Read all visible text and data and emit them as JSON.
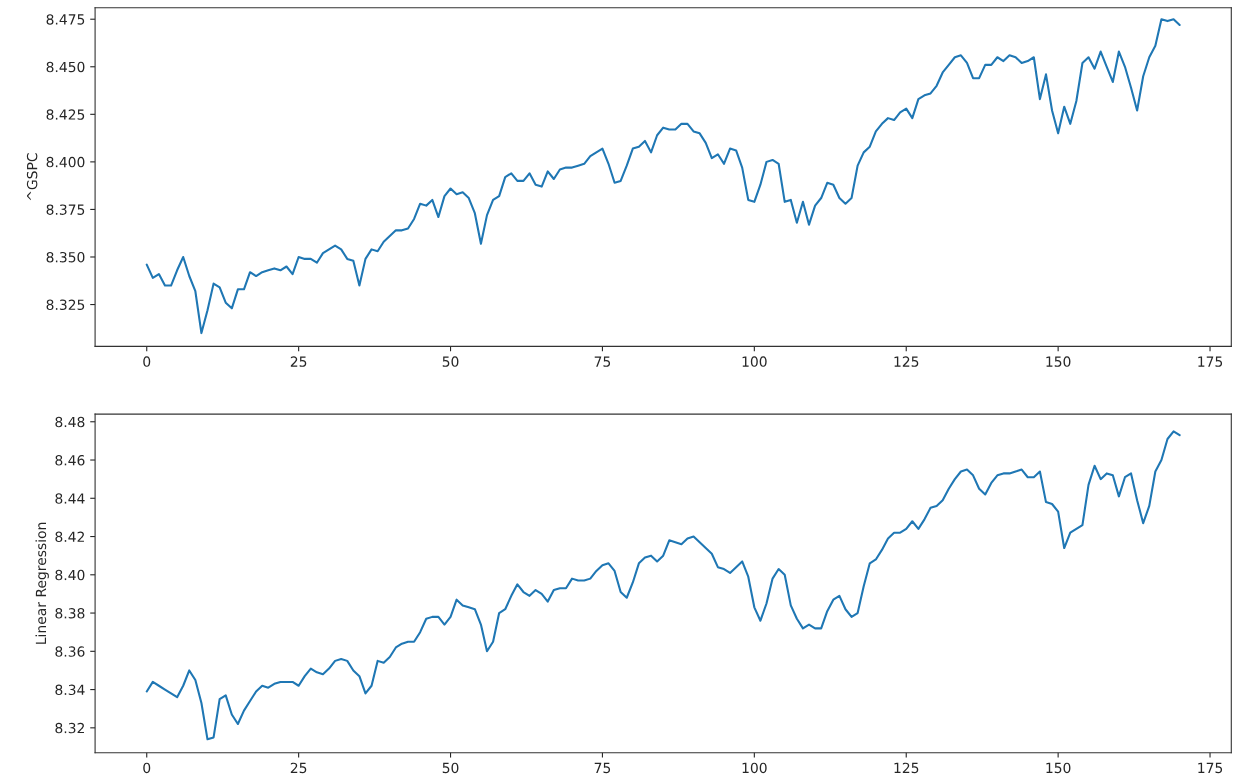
{
  "chart_data": [
    {
      "type": "line",
      "ylabel": "^GSPC",
      "xlim": [
        -8.5,
        178.5
      ],
      "ylim": [
        8.303,
        8.481
      ],
      "xticks": [
        0,
        25,
        50,
        75,
        100,
        125,
        150,
        175
      ],
      "yticks": [
        {
          "value": 8.325,
          "label": "8.325"
        },
        {
          "value": 8.35,
          "label": "8.350"
        },
        {
          "value": 8.375,
          "label": "8.375"
        },
        {
          "value": 8.4,
          "label": "8.400"
        },
        {
          "value": 8.425,
          "label": "8.425"
        },
        {
          "value": 8.45,
          "label": "8.450"
        },
        {
          "value": 8.475,
          "label": "8.475"
        }
      ],
      "grid": false,
      "legend": false,
      "series": [
        {
          "color": "#1f77b4",
          "x": [
            0,
            1,
            2,
            3,
            4,
            5,
            6,
            7,
            8,
            9,
            10,
            11,
            12,
            13,
            14,
            15,
            16,
            17,
            18,
            19,
            20,
            21,
            22,
            23,
            24,
            25,
            26,
            27,
            28,
            29,
            30,
            31,
            32,
            33,
            34,
            35,
            36,
            37,
            38,
            39,
            40,
            41,
            42,
            43,
            44,
            45,
            46,
            47,
            48,
            49,
            50,
            51,
            52,
            53,
            54,
            55,
            56,
            57,
            58,
            59,
            60,
            61,
            62,
            63,
            64,
            65,
            66,
            67,
            68,
            69,
            70,
            71,
            72,
            73,
            74,
            75,
            76,
            77,
            78,
            79,
            80,
            81,
            82,
            83,
            84,
            85,
            86,
            87,
            88,
            89,
            90,
            91,
            92,
            93,
            94,
            95,
            96,
            97,
            98,
            99,
            100,
            101,
            102,
            103,
            104,
            105,
            106,
            107,
            108,
            109,
            110,
            111,
            112,
            113,
            114,
            115,
            116,
            117,
            118,
            119,
            120,
            121,
            122,
            123,
            124,
            125,
            126,
            127,
            128,
            129,
            130,
            131,
            132,
            133,
            134,
            135,
            136,
            137,
            138,
            139,
            140,
            141,
            142,
            143,
            144,
            145,
            146,
            147,
            148,
            149,
            150,
            151,
            152,
            153,
            154,
            155,
            156,
            157,
            158,
            159,
            160,
            161,
            162,
            163,
            164,
            165,
            166,
            167,
            168,
            169,
            170
          ],
          "values": [
            8.346,
            8.339,
            8.341,
            8.335,
            8.335,
            8.343,
            8.35,
            8.34,
            8.332,
            8.31,
            8.322,
            8.336,
            8.334,
            8.326,
            8.323,
            8.333,
            8.333,
            8.342,
            8.34,
            8.342,
            8.343,
            8.344,
            8.343,
            8.345,
            8.341,
            8.35,
            8.349,
            8.349,
            8.347,
            8.352,
            8.354,
            8.356,
            8.354,
            8.349,
            8.348,
            8.335,
            8.349,
            8.354,
            8.353,
            8.358,
            8.361,
            8.364,
            8.364,
            8.365,
            8.37,
            8.378,
            8.377,
            8.38,
            8.371,
            8.382,
            8.386,
            8.383,
            8.384,
            8.381,
            8.373,
            8.357,
            8.372,
            8.38,
            8.382,
            8.392,
            8.394,
            8.39,
            8.39,
            8.394,
            8.388,
            8.387,
            8.395,
            8.391,
            8.396,
            8.397,
            8.397,
            8.398,
            8.399,
            8.403,
            8.405,
            8.407,
            8.399,
            8.389,
            8.39,
            8.398,
            8.407,
            8.408,
            8.411,
            8.405,
            8.414,
            8.418,
            8.417,
            8.417,
            8.42,
            8.42,
            8.416,
            8.415,
            8.41,
            8.402,
            8.404,
            8.399,
            8.407,
            8.406,
            8.397,
            8.38,
            8.379,
            8.388,
            8.4,
            8.401,
            8.399,
            8.379,
            8.38,
            8.368,
            8.379,
            8.367,
            8.377,
            8.381,
            8.389,
            8.388,
            8.381,
            8.378,
            8.381,
            8.398,
            8.405,
            8.408,
            8.416,
            8.42,
            8.423,
            8.422,
            8.426,
            8.428,
            8.423,
            8.433,
            8.435,
            8.436,
            8.44,
            8.447,
            8.451,
            8.455,
            8.456,
            8.452,
            8.444,
            8.444,
            8.451,
            8.451,
            8.455,
            8.453,
            8.456,
            8.455,
            8.452,
            8.453,
            8.455,
            8.433,
            8.446,
            8.427,
            8.415,
            8.429,
            8.42,
            8.432,
            8.452,
            8.455,
            8.449,
            8.458,
            8.45,
            8.442,
            8.458,
            8.45,
            8.439,
            8.427,
            8.445,
            8.455,
            8.461,
            8.475,
            8.474,
            8.475,
            8.472
          ]
        }
      ]
    },
    {
      "type": "line",
      "ylabel": "Linear Regression",
      "xlim": [
        -8.5,
        178.5
      ],
      "ylim": [
        8.307,
        8.484
      ],
      "xticks": [
        0,
        25,
        50,
        75,
        100,
        125,
        150,
        175
      ],
      "yticks": [
        {
          "value": 8.32,
          "label": "8.32"
        },
        {
          "value": 8.34,
          "label": "8.34"
        },
        {
          "value": 8.36,
          "label": "8.36"
        },
        {
          "value": 8.38,
          "label": "8.38"
        },
        {
          "value": 8.4,
          "label": "8.40"
        },
        {
          "value": 8.42,
          "label": "8.42"
        },
        {
          "value": 8.44,
          "label": "8.44"
        },
        {
          "value": 8.46,
          "label": "8.46"
        },
        {
          "value": 8.48,
          "label": "8.48"
        }
      ],
      "grid": false,
      "legend": false,
      "series": [
        {
          "color": "#1f77b4",
          "x": [
            0,
            1,
            2,
            3,
            4,
            5,
            6,
            7,
            8,
            9,
            10,
            11,
            12,
            13,
            14,
            15,
            16,
            17,
            18,
            19,
            20,
            21,
            22,
            23,
            24,
            25,
            26,
            27,
            28,
            29,
            30,
            31,
            32,
            33,
            34,
            35,
            36,
            37,
            38,
            39,
            40,
            41,
            42,
            43,
            44,
            45,
            46,
            47,
            48,
            49,
            50,
            51,
            52,
            53,
            54,
            55,
            56,
            57,
            58,
            59,
            60,
            61,
            62,
            63,
            64,
            65,
            66,
            67,
            68,
            69,
            70,
            71,
            72,
            73,
            74,
            75,
            76,
            77,
            78,
            79,
            80,
            81,
            82,
            83,
            84,
            85,
            86,
            87,
            88,
            89,
            90,
            91,
            92,
            93,
            94,
            95,
            96,
            97,
            98,
            99,
            100,
            101,
            102,
            103,
            104,
            105,
            106,
            107,
            108,
            109,
            110,
            111,
            112,
            113,
            114,
            115,
            116,
            117,
            118,
            119,
            120,
            121,
            122,
            123,
            124,
            125,
            126,
            127,
            128,
            129,
            130,
            131,
            132,
            133,
            134,
            135,
            136,
            137,
            138,
            139,
            140,
            141,
            142,
            143,
            144,
            145,
            146,
            147,
            148,
            149,
            150,
            151,
            152,
            153,
            154,
            155,
            156,
            157,
            158,
            159,
            160,
            161,
            162,
            163,
            164,
            165,
            166,
            167,
            168,
            169,
            170
          ],
          "values": [
            8.339,
            8.344,
            8.342,
            8.34,
            8.338,
            8.336,
            8.342,
            8.35,
            8.345,
            8.333,
            8.314,
            8.315,
            8.335,
            8.337,
            8.327,
            8.322,
            8.329,
            8.334,
            8.339,
            8.342,
            8.341,
            8.343,
            8.344,
            8.344,
            8.344,
            8.342,
            8.347,
            8.351,
            8.349,
            8.348,
            8.351,
            8.355,
            8.356,
            8.355,
            8.35,
            8.347,
            8.338,
            8.342,
            8.355,
            8.354,
            8.357,
            8.362,
            8.364,
            8.365,
            8.365,
            8.37,
            8.377,
            8.378,
            8.378,
            8.374,
            8.378,
            8.387,
            8.384,
            8.383,
            8.382,
            8.374,
            8.36,
            8.365,
            8.38,
            8.382,
            8.389,
            8.395,
            8.391,
            8.389,
            8.392,
            8.39,
            8.386,
            8.392,
            8.393,
            8.393,
            8.398,
            8.397,
            8.397,
            8.398,
            8.402,
            8.405,
            8.406,
            8.402,
            8.391,
            8.388,
            8.396,
            8.406,
            8.409,
            8.41,
            8.407,
            8.41,
            8.418,
            8.417,
            8.416,
            8.419,
            8.42,
            8.417,
            8.414,
            8.411,
            8.404,
            8.403,
            8.401,
            8.404,
            8.407,
            8.399,
            8.383,
            8.376,
            8.385,
            8.398,
            8.403,
            8.4,
            8.384,
            8.377,
            8.372,
            8.374,
            8.372,
            8.372,
            8.381,
            8.387,
            8.389,
            8.382,
            8.378,
            8.38,
            8.394,
            8.406,
            8.408,
            8.413,
            8.419,
            8.422,
            8.422,
            8.424,
            8.428,
            8.424,
            8.429,
            8.435,
            8.436,
            8.439,
            8.445,
            8.45,
            8.454,
            8.455,
            8.452,
            8.445,
            8.442,
            8.448,
            8.452,
            8.453,
            8.453,
            8.454,
            8.455,
            8.451,
            8.451,
            8.454,
            8.438,
            8.437,
            8.433,
            8.414,
            8.422,
            8.424,
            8.426,
            8.447,
            8.457,
            8.45,
            8.453,
            8.452,
            8.441,
            8.451,
            8.453,
            8.439,
            8.427,
            8.436,
            8.454,
            8.46,
            8.471,
            8.475,
            8.473
          ]
        }
      ]
    }
  ]
}
